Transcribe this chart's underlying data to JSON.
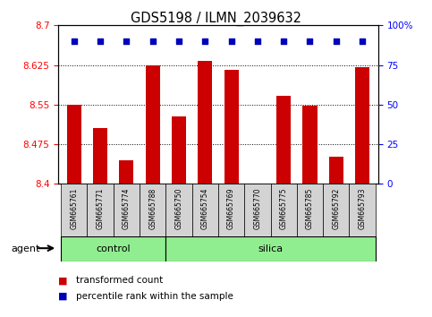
{
  "title": "GDS5198 / ILMN_2039632",
  "samples": [
    "GSM665761",
    "GSM665771",
    "GSM665774",
    "GSM665788",
    "GSM665750",
    "GSM665754",
    "GSM665769",
    "GSM665770",
    "GSM665775",
    "GSM665785",
    "GSM665792",
    "GSM665793"
  ],
  "bar_values": [
    8.55,
    8.505,
    8.445,
    8.625,
    8.527,
    8.632,
    8.615,
    8.395,
    8.567,
    8.548,
    8.452,
    8.621
  ],
  "percentile_values": [
    90,
    90,
    90,
    90,
    90,
    90,
    90,
    90,
    90,
    90,
    90,
    90
  ],
  "bar_color": "#cc0000",
  "dot_color": "#0000bb",
  "ylim_left": [
    8.4,
    8.7
  ],
  "ylim_right": [
    0,
    100
  ],
  "yticks_left": [
    8.4,
    8.475,
    8.55,
    8.625,
    8.7
  ],
  "yticks_right": [
    0,
    25,
    50,
    75,
    100
  ],
  "control_samples": 4,
  "control_label": "control",
  "silica_label": "silica",
  "agent_label": "agent",
  "legend_bar_label": "transformed count",
  "legend_dot_label": "percentile rank within the sample",
  "plot_bg_color": "#ffffff",
  "group_bg_color": "#90EE90",
  "bar_width": 0.55
}
